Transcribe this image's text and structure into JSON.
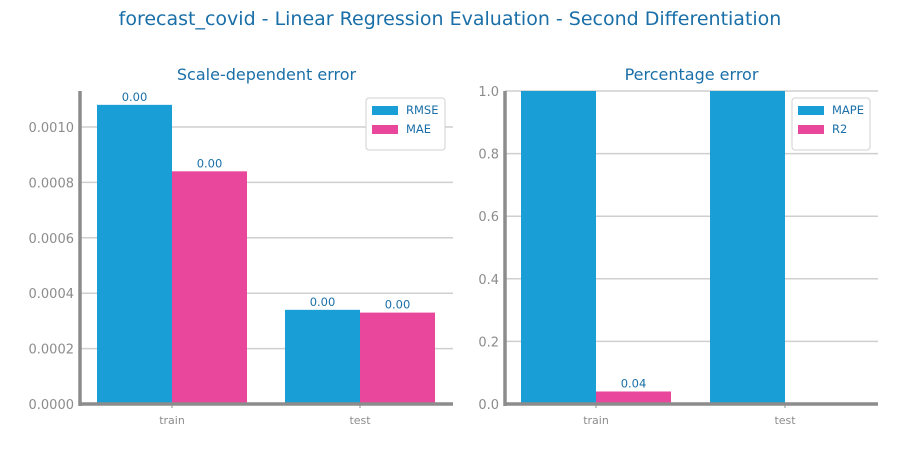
{
  "figure_title": "forecast_covid - Linear Regression Evaluation - Second Differentiation",
  "colors": {
    "title": "#1a6fa8",
    "axis": "#8c8c8c",
    "tick_label": "#8c8c8c",
    "grid": "#cfcfcf",
    "value_label": "#1a6fa8",
    "legend_text": "#1a6fa8",
    "series_blue": "#1a9ed6",
    "series_pink": "#e8479c"
  },
  "chart_data": [
    {
      "type": "bar",
      "title": "Scale-dependent error",
      "xlabel": "",
      "ylabel": "",
      "categories": [
        "train",
        "test"
      ],
      "series": [
        {
          "name": "RMSE",
          "color": "#1a9ed6",
          "values": [
            0.00108,
            0.00034
          ],
          "labels": [
            "0.00",
            "0.00"
          ]
        },
        {
          "name": "MAE",
          "color": "#e8479c",
          "values": [
            0.00084,
            0.00033
          ],
          "labels": [
            "0.00",
            "0.00"
          ]
        }
      ],
      "ylim": [
        0,
        0.00113
      ],
      "yticks": [
        0,
        0.0002,
        0.0004,
        0.0006,
        0.0008,
        0.001
      ],
      "ytick_labels": [
        "0.0000",
        "0.0002",
        "0.0004",
        "0.0006",
        "0.0008",
        "0.0010"
      ],
      "grid": true,
      "legend_position": "top-right"
    },
    {
      "type": "bar",
      "title": "Percentage error",
      "xlabel": "",
      "ylabel": "",
      "categories": [
        "train",
        "test"
      ],
      "series": [
        {
          "name": "MAPE",
          "color": "#1a9ed6",
          "values": [
            1.0,
            1.0
          ],
          "labels": [
            "",
            ""
          ]
        },
        {
          "name": "R2",
          "color": "#e8479c",
          "values": [
            0.04,
            0.0
          ],
          "labels": [
            "0.04",
            ""
          ]
        }
      ],
      "ylim": [
        0,
        1.0
      ],
      "yticks": [
        0,
        0.2,
        0.4,
        0.6,
        0.8,
        1.0
      ],
      "ytick_labels": [
        "0.0",
        "0.2",
        "0.4",
        "0.6",
        "0.8",
        "1.0"
      ],
      "grid": true,
      "legend_position": "top-right"
    }
  ]
}
